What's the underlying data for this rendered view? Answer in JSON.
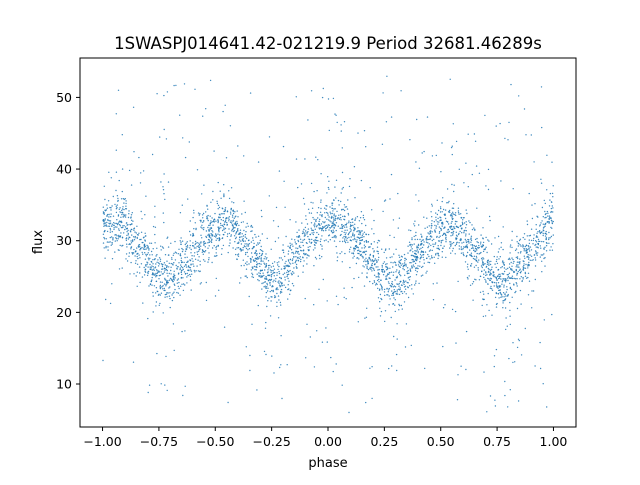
{
  "chart_data": {
    "type": "scatter",
    "title": "1SWASPJ014641.42-021219.9 Period 32681.46289s",
    "xlabel": "phase",
    "ylabel": "flux",
    "xlim": [
      -1.1,
      1.1
    ],
    "ylim": [
      4,
      55.5
    ],
    "xticks": [
      -1.0,
      -0.75,
      -0.5,
      -0.25,
      0.0,
      0.25,
      0.5,
      0.75,
      1.0
    ],
    "xtick_labels": [
      "−1.00",
      "−0.75",
      "−0.50",
      "−0.25",
      "0.00",
      "0.25",
      "0.50",
      "0.75",
      "1.00"
    ],
    "yticks": [
      10,
      20,
      30,
      40,
      50
    ],
    "ytick_labels": [
      "10",
      "20",
      "30",
      "40",
      "50"
    ],
    "grid": false,
    "legend": "none",
    "marker_color": "#1f77b4",
    "series": [
      {
        "x_range": [
          -1.0,
          1.0
        ],
        "phase_profile": {
          "x": [
            -1.0,
            -0.9,
            -0.8,
            -0.75,
            -0.7,
            -0.6,
            -0.5,
            -0.45,
            -0.4,
            -0.3,
            -0.25,
            -0.2,
            -0.1,
            0.0,
            0.05,
            0.1,
            0.2,
            0.25,
            0.3,
            0.4,
            0.5,
            0.55,
            0.6,
            0.7,
            0.75,
            0.8,
            0.9,
            1.0
          ],
          "y": [
            32.5,
            32.0,
            27.5,
            25.0,
            24.5,
            28.5,
            32.0,
            32.5,
            31.0,
            26.5,
            24.0,
            25.0,
            30.0,
            32.5,
            33.0,
            31.5,
            27.0,
            24.5,
            24.0,
            28.0,
            31.5,
            32.0,
            31.0,
            26.5,
            24.0,
            24.5,
            29.0,
            32.5
          ]
        },
        "band_half_width": 3.5,
        "outlier_range": [
          6,
          53
        ]
      }
    ]
  }
}
